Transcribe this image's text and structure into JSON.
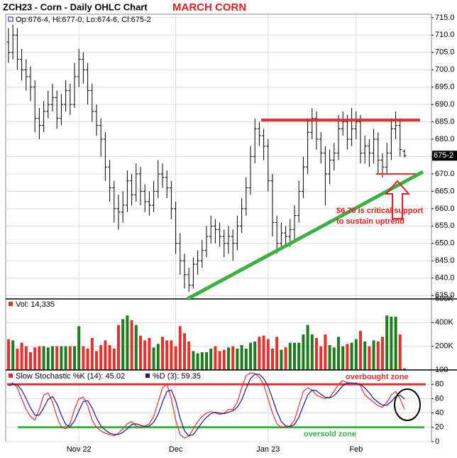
{
  "chart_data": [
    {
      "type": "ohlc",
      "title": "ZCH23 - Corn - Daily OHLC Chart",
      "annotation": "MARCH CORN",
      "legend": "Op:676-4, Hi:677-0, Lo:674-6, Cl:675-2",
      "last_label": "675-2",
      "note": [
        "$6.70 is critical support",
        "to sustain uptrend"
      ],
      "color": "#000000",
      "resistance": 685.5,
      "support": 670,
      "grid": true,
      "ylim": [
        634,
        716
      ],
      "yticks": [
        {
          "value": 635,
          "label": "635.0"
        },
        {
          "value": 640,
          "label": "640.0"
        },
        {
          "value": 645,
          "label": "645.0"
        },
        {
          "value": 650,
          "label": "650.0"
        },
        {
          "value": 655,
          "label": "655.0"
        },
        {
          "value": 660,
          "label": "660.0"
        },
        {
          "value": 665,
          "label": "665.0"
        },
        {
          "value": 670,
          "label": "670.0"
        },
        {
          "value": 675,
          "label": "675.0"
        },
        {
          "value": 680,
          "label": "680.0"
        },
        {
          "value": 685,
          "label": "685.0"
        },
        {
          "value": 690,
          "label": "690.0"
        },
        {
          "value": 695,
          "label": "695.0"
        },
        {
          "value": 700,
          "label": "700.0"
        },
        {
          "value": 705,
          "label": "705.0"
        },
        {
          "value": 710,
          "label": "710.0"
        },
        {
          "value": 715,
          "label": "715.0"
        }
      ],
      "open": [
        708,
        705,
        710,
        703,
        700,
        698,
        695,
        686,
        684,
        688,
        690,
        692,
        686,
        690,
        694,
        690,
        698,
        703,
        700,
        694,
        688,
        684,
        680,
        672,
        666,
        660,
        659,
        661,
        668,
        664,
        670,
        665,
        662,
        661,
        665,
        670,
        669,
        666,
        660,
        650,
        645,
        641,
        638,
        644,
        645,
        648,
        652,
        655,
        654,
        652,
        650,
        652,
        650,
        655,
        660,
        666,
        675,
        683,
        681,
        678,
        668,
        656,
        650,
        653,
        652,
        654,
        658,
        665,
        672,
        682,
        686,
        680,
        676,
        670,
        674,
        676,
        683,
        685,
        680,
        683,
        685,
        676,
        678,
        676,
        680,
        674,
        672,
        676,
        683,
        684,
        676.5
      ],
      "high": [
        712,
        713,
        712,
        706,
        703,
        701,
        697,
        689,
        691,
        694,
        696,
        694,
        693,
        697,
        696,
        702,
        706,
        705,
        702,
        696,
        690,
        686,
        682,
        674,
        668,
        664,
        665,
        671,
        670,
        673,
        672,
        667,
        665,
        668,
        674,
        673,
        671,
        668,
        662,
        653,
        647,
        643,
        646,
        648,
        651,
        655,
        658,
        657,
        656,
        654,
        655,
        654,
        658,
        663,
        669,
        678,
        686,
        685,
        683,
        680,
        670,
        658,
        656,
        655,
        657,
        661,
        668,
        675,
        686,
        689,
        688,
        682,
        678,
        677,
        679,
        687,
        688,
        687,
        689,
        688,
        687,
        681,
        680,
        683,
        682,
        676,
        679,
        686,
        688,
        686,
        677
      ],
      "low": [
        702,
        703,
        700,
        697,
        694,
        691,
        682,
        680,
        682,
        686,
        688,
        683,
        684,
        688,
        687,
        689,
        695,
        696,
        690,
        685,
        681,
        675,
        668,
        662,
        656,
        654,
        656,
        659,
        661,
        662,
        661,
        659,
        658,
        659,
        663,
        666,
        663,
        657,
        647,
        641,
        637,
        636,
        637,
        641,
        643,
        646,
        650,
        650,
        649,
        646,
        647,
        645,
        648,
        653,
        658,
        664,
        673,
        678,
        674,
        665,
        652,
        647,
        648,
        649,
        649,
        651,
        656,
        663,
        670,
        680,
        677,
        673,
        661,
        667,
        671,
        674,
        681,
        677,
        678,
        680,
        673,
        673,
        672,
        673,
        670,
        669,
        670,
        674,
        680,
        675,
        674.75
      ],
      "close": [
        705,
        710,
        703,
        700,
        698,
        695,
        686,
        684,
        688,
        690,
        692,
        686,
        690,
        694,
        690,
        698,
        703,
        700,
        694,
        688,
        684,
        680,
        672,
        666,
        660,
        659,
        661,
        668,
        664,
        670,
        665,
        662,
        661,
        665,
        670,
        669,
        666,
        660,
        650,
        645,
        641,
        638,
        644,
        645,
        648,
        652,
        655,
        654,
        652,
        650,
        652,
        650,
        655,
        660,
        666,
        675,
        683,
        681,
        678,
        668,
        656,
        650,
        653,
        652,
        654,
        658,
        665,
        672,
        682,
        686,
        680,
        676,
        670,
        674,
        676,
        683,
        685,
        680,
        683,
        685,
        676,
        678,
        676,
        680,
        674,
        672,
        676,
        683,
        684,
        677,
        675.25
      ]
    },
    {
      "type": "volume",
      "legend": "Vol: 14,335",
      "up_color": "#1e7b1e",
      "down_color": "#e8302a",
      "ylim": [
        0,
        600000
      ],
      "yticks": [
        {
          "value": 200000,
          "label": "200K"
        },
        {
          "value": 400000,
          "label": "400K"
        },
        {
          "value": 600000,
          "label": "600K"
        }
      ],
      "values": [
        260000,
        250000,
        180000,
        230000,
        200000,
        150000,
        190000,
        200000,
        200000,
        190000,
        200000,
        200000,
        200000,
        200000,
        200000,
        200000,
        370000,
        200000,
        180000,
        270000,
        160000,
        210000,
        250000,
        210000,
        180000,
        380000,
        430000,
        460000,
        420000,
        380000,
        290000,
        250000,
        270000,
        190000,
        220000,
        280000,
        250000,
        250000,
        200000,
        370000,
        310000,
        240000,
        160000,
        140000,
        150000,
        150000,
        180000,
        200000,
        160000,
        170000,
        190000,
        200000,
        180000,
        210000,
        180000,
        230000,
        240000,
        280000,
        290000,
        260000,
        180000,
        280000,
        170000,
        190000,
        230000,
        230000,
        230000,
        300000,
        380000,
        300000,
        270000,
        200000,
        300000,
        210000,
        190000,
        280000,
        200000,
        220000,
        230000,
        260000,
        330000,
        240000,
        200000,
        250000,
        240000,
        280000,
        460000,
        450000,
        450000,
        300000,
        14335
      ]
    },
    {
      "type": "stochastic",
      "ylim": [
        0,
        100
      ],
      "yticks": [
        0,
        20,
        40,
        60,
        80,
        100
      ],
      "overbought": 80,
      "oversold": 20,
      "overbought_label": "overbought zone",
      "oversold_label": "oversold zone",
      "categories": [
        null,
        null,
        null,
        null,
        null,
        null,
        null,
        null,
        null,
        null,
        null,
        null,
        null,
        null,
        null,
        null,
        "Nov 22",
        null,
        null,
        null,
        null,
        null,
        null,
        null,
        null,
        null,
        null,
        null,
        null,
        null,
        null,
        null,
        null,
        null,
        null,
        null,
        null,
        null,
        "Dec",
        null,
        null,
        null,
        null,
        null,
        null,
        null,
        null,
        null,
        null,
        null,
        null,
        null,
        null,
        null,
        null,
        null,
        null,
        null,
        null,
        "Jan 23",
        null,
        null,
        null,
        null,
        null,
        null,
        null,
        null,
        null,
        null,
        null,
        null,
        null,
        null,
        null,
        null,
        null,
        null,
        null,
        "Feb",
        null,
        null,
        null,
        null,
        null,
        null,
        null,
        null,
        null,
        null,
        null
      ],
      "series": [
        {
          "name": "Slow Stochastic %K (14): 45.02",
          "color": "#e03030",
          "values": [
            80,
            82,
            75,
            60,
            45,
            35,
            30,
            45,
            65,
            68,
            55,
            35,
            20,
            18,
            25,
            45,
            60,
            62,
            50,
            30,
            20,
            15,
            12,
            10,
            8,
            12,
            18,
            25,
            28,
            22,
            20,
            22,
            25,
            35,
            55,
            75,
            80,
            60,
            30,
            10,
            5,
            8,
            18,
            28,
            35,
            40,
            42,
            40,
            38,
            40,
            45,
            45,
            55,
            75,
            92,
            96,
            95,
            90,
            80,
            60,
            40,
            25,
            20,
            20,
            22,
            30,
            50,
            70,
            75,
            72,
            65,
            62,
            60,
            62,
            70,
            80,
            85,
            82,
            80,
            82,
            78,
            65,
            60,
            55,
            50,
            48,
            55,
            65,
            70,
            60,
            45.02
          ]
        },
        {
          "name": "%D (3): 59.35",
          "color": "#1a1a80",
          "values": [
            78,
            80,
            79,
            72,
            60,
            47,
            37,
            37,
            47,
            59,
            63,
            53,
            37,
            24,
            21,
            29,
            43,
            56,
            57,
            47,
            33,
            22,
            16,
            12,
            10,
            10,
            13,
            18,
            24,
            25,
            23,
            21,
            22,
            27,
            38,
            55,
            70,
            72,
            57,
            33,
            15,
            8,
            10,
            18,
            27,
            34,
            39,
            41,
            40,
            39,
            41,
            43,
            48,
            58,
            74,
            88,
            94,
            94,
            88,
            77,
            60,
            42,
            28,
            22,
            21,
            24,
            34,
            50,
            65,
            72,
            71,
            66,
            62,
            61,
            64,
            71,
            78,
            82,
            82,
            81,
            80,
            75,
            68,
            60,
            55,
            51,
            51,
            56,
            63,
            65,
            59.35
          ]
        }
      ]
    }
  ]
}
